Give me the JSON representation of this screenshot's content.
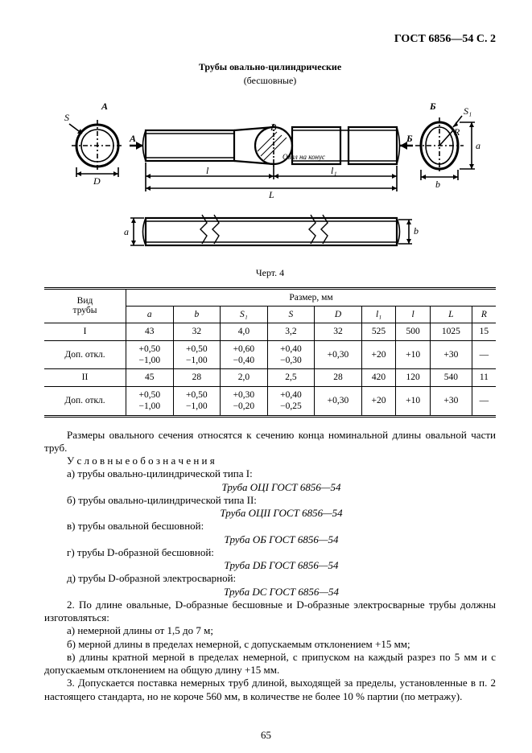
{
  "header": {
    "gost": "ГОСТ 6856—54 С. 2"
  },
  "figure": {
    "title": "Трубы овально-цилиндрические",
    "subtitle": "(бесшовные)",
    "caption": "Черт. 4",
    "labels": {
      "A": "А",
      "B": "Б",
      "S": "S",
      "S1": "S₁",
      "R": "R",
      "a_dim": "a",
      "b_dim": "b",
      "D": "D",
      "Bview": "В",
      "oval_na_konus": "Овал на\nконус",
      "l": "l",
      "l1": "l₁",
      "L": "L"
    }
  },
  "table": {
    "head1": "Вид\nтрубы",
    "head2": "Размер, мм",
    "cols": [
      "a",
      "b",
      "S₁",
      "S",
      "D",
      "l₁",
      "l",
      "L",
      "R"
    ],
    "rows": [
      {
        "name": "I",
        "cells": [
          "43",
          "32",
          "4,0",
          "3,2",
          "32",
          "525",
          "500",
          "1025",
          "15"
        ]
      },
      {
        "name": "Доп. откл.",
        "cells": [
          "+0,50\n−1,00",
          "+0,50\n−1,00",
          "+0,60\n−0,40",
          "+0,40\n−0,30",
          "+0,30",
          "+20",
          "+10",
          "+30",
          "—"
        ]
      },
      {
        "name": "II",
        "cells": [
          "45",
          "28",
          "2,0",
          "2,5",
          "28",
          "420",
          "120",
          "540",
          "11"
        ]
      },
      {
        "name": "Доп. откл.",
        "cells": [
          "+0,50\n−1,00",
          "+0,50\n−1,00",
          "+0,30\n−0,20",
          "+0,40\n−0,25",
          "+0,30",
          "+20",
          "+10",
          "+30",
          "—"
        ]
      }
    ]
  },
  "body": {
    "p1": "Размеры овального сечения относятся к сечению конца номинальной длины овальной части труб.",
    "p2_label": "У с л о в н ы е   о б о з н а ч е н и я",
    "desig": [
      {
        "t": "а) трубы овально-цилиндрической типа I:",
        "d": "Труба ОЦI ГОСТ 6856—54"
      },
      {
        "t": "б) трубы овально-цилиндрической типа II:",
        "d": "Труба ОЦII ГОСТ 6856—54"
      },
      {
        "t": "в) трубы овальной бесшовной:",
        "d": "Труба ОБ ГОСТ 6856—54"
      },
      {
        "t": "г) трубы D-образной бесшовной:",
        "d": "Труба DБ ГОСТ 6856—54"
      },
      {
        "t": "д) трубы D-образной электросварной:",
        "d": "Труба DС ГОСТ 6856—54"
      }
    ],
    "p3": "2. По длине овальные, D-образные бесшовные и D-образные электросварные трубы должны изготовляться:",
    "p3a": "а) немерной длины от 1,5 до 7 м;",
    "p3b": "б) мерной длины в пределах немерной, с допускаемым отклонением +15 мм;",
    "p3c": "в) длины кратной мерной в пределах немерной, с припуском на каждый разрез по 5 мм и с допускаемым отклонением на общую длину +15 мм.",
    "p4": "3. Допускается поставка немерных труб длиной, выходящей за пределы, установленные в п. 2 настоящего стандарта, но не короче 560 мм, в количестве не более 10 % партии (по метражу)."
  },
  "pagenum": "65"
}
